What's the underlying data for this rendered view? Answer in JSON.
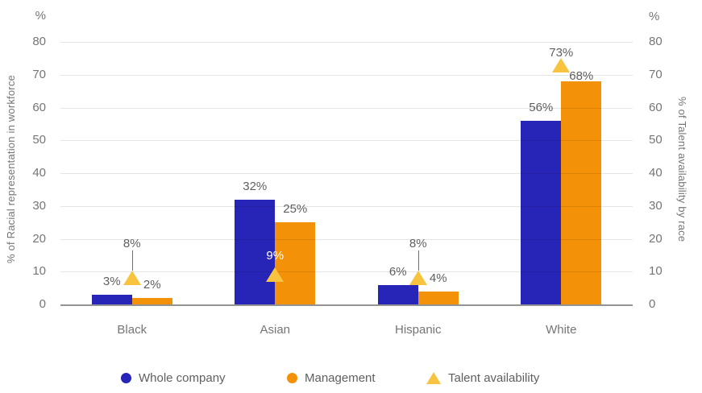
{
  "chart_data": {
    "type": "bar",
    "categories": [
      "Black",
      "Asian",
      "Hispanic",
      "White"
    ],
    "series": [
      {
        "name": "Whole company",
        "kind": "bar",
        "color": "#2724b8",
        "values": [
          3,
          32,
          6,
          56
        ]
      },
      {
        "name": "Management",
        "kind": "bar",
        "color": "#f39208",
        "values": [
          2,
          25,
          4,
          68
        ],
        "label_dy": [
          0,
          0,
          0,
          10
        ]
      },
      {
        "name": "Talent availability",
        "kind": "triangle",
        "color": "#f8c440",
        "values": [
          8,
          9,
          8,
          73
        ],
        "label_modes": [
          "callout",
          "on-bars",
          "callout",
          "above"
        ]
      }
    ],
    "value_suffix": "%",
    "y_unit": "%",
    "ylabel_left": "% of Racial representation in workforce",
    "ylabel_right": "% of Talent availability by race",
    "ylim": [
      0,
      80
    ],
    "yticks": [
      0,
      10,
      20,
      30,
      40,
      50,
      60,
      70,
      80
    ],
    "grid": true,
    "legend_position": "bottom",
    "data_labels": {
      "Whole company": [
        "3%",
        "32%",
        "6%",
        "56%"
      ],
      "Management": [
        "2%",
        "25%",
        "4%",
        "68%"
      ],
      "Talent availability": [
        "8%",
        "9%",
        "8%",
        "73%"
      ]
    }
  }
}
